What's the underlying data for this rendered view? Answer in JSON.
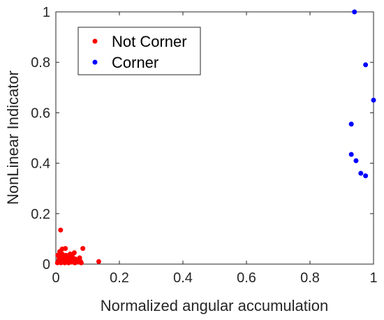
{
  "chart_data": {
    "type": "scatter",
    "xlabel": "Normalized angular accumulation",
    "ylabel": "NonLinear Indicator",
    "xlim": [
      0,
      1
    ],
    "ylim": [
      0,
      1
    ],
    "xticks": [
      "0",
      "0.2",
      "0.4",
      "0.6",
      "0.8",
      "1"
    ],
    "yticks": [
      "0",
      "0.2",
      "0.4",
      "0.6",
      "0.8",
      "1"
    ],
    "grid": false,
    "legend_position": "top-left",
    "series": [
      {
        "name": "Not Corner",
        "color": "#ff0000",
        "points": [
          [
            0.005,
            0.005
          ],
          [
            0.008,
            0.012
          ],
          [
            0.01,
            0.02
          ],
          [
            0.012,
            0.03
          ],
          [
            0.015,
            0.008
          ],
          [
            0.018,
            0.018
          ],
          [
            0.02,
            0.04
          ],
          [
            0.022,
            0.01
          ],
          [
            0.025,
            0.025
          ],
          [
            0.028,
            0.005
          ],
          [
            0.03,
            0.015
          ],
          [
            0.032,
            0.035
          ],
          [
            0.035,
            0.01
          ],
          [
            0.038,
            0.02
          ],
          [
            0.04,
            0.005
          ],
          [
            0.042,
            0.028
          ],
          [
            0.045,
            0.012
          ],
          [
            0.048,
            0.018
          ],
          [
            0.05,
            0.008
          ],
          [
            0.052,
            0.03
          ],
          [
            0.055,
            0.015
          ],
          [
            0.058,
            0.045
          ],
          [
            0.06,
            0.005
          ],
          [
            0.062,
            0.02
          ],
          [
            0.065,
            0.01
          ],
          [
            0.07,
            0.008
          ],
          [
            0.075,
            0.025
          ],
          [
            0.078,
            0.01
          ],
          [
            0.08,
            0.005
          ],
          [
            0.012,
            0.05
          ],
          [
            0.02,
            0.06
          ],
          [
            0.03,
            0.062
          ],
          [
            0.006,
            0.035
          ],
          [
            0.016,
            0.005
          ],
          [
            0.045,
            0.04
          ],
          [
            0.085,
            0.062
          ],
          [
            0.015,
            0.135
          ],
          [
            0.135,
            0.01
          ]
        ]
      },
      {
        "name": "Corner",
        "color": "#0000ff",
        "points": [
          [
            0.94,
            1.0
          ],
          [
            0.975,
            0.79
          ],
          [
            1.0,
            0.65
          ],
          [
            0.93,
            0.555
          ],
          [
            0.93,
            0.435
          ],
          [
            0.945,
            0.41
          ],
          [
            0.96,
            0.36
          ],
          [
            0.975,
            0.35
          ]
        ]
      }
    ]
  }
}
